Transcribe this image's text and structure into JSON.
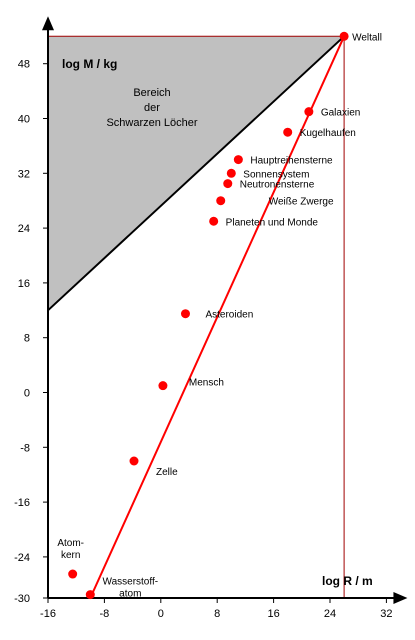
{
  "chart_data": {
    "type": "scatter",
    "title": "",
    "xlabel": "log R / m",
    "ylabel": "log M / kg",
    "xlim": [
      -16,
      33
    ],
    "ylim": [
      -30,
      52
    ],
    "x_ticks": [
      -16,
      -8,
      0,
      8,
      16,
      24,
      32
    ],
    "y_ticks": [
      -30,
      -24,
      -16,
      -8,
      0,
      8,
      16,
      24,
      32,
      40,
      48
    ],
    "region": {
      "label_lines": [
        "Bereich",
        "der",
        "Schwarzen Löcher"
      ],
      "boundary": [
        [
          -16,
          12
        ],
        [
          26,
          52
        ]
      ]
    },
    "trend_line": {
      "from": [
        -10,
        -30
      ],
      "to": [
        26,
        52
      ]
    },
    "universe_limit": {
      "x": 26,
      "y": 52
    },
    "points": [
      {
        "label": "Weltall",
        "x": 26,
        "y": 52
      },
      {
        "label": "Galaxien",
        "x": 21,
        "y": 41
      },
      {
        "label": "Kugelhaufen",
        "x": 18,
        "y": 38
      },
      {
        "label": "Hauptreihensterne",
        "x": 11,
        "y": 34
      },
      {
        "label": "Sonnensystem",
        "x": 10,
        "y": 32
      },
      {
        "label": "Neutronensterne",
        "x": 9.5,
        "y": 30.5
      },
      {
        "label": "Weiße Zwerge",
        "x": 8.5,
        "y": 28
      },
      {
        "label": "Planeten und Monde",
        "x": 7.5,
        "y": 25
      },
      {
        "label": "Asteroiden",
        "x": 3.5,
        "y": 11.5
      },
      {
        "label": "Mensch",
        "x": 0.3,
        "y": 1
      },
      {
        "label": "Zelle",
        "x": -3.8,
        "y": -10
      },
      {
        "label": "Atom-\nkern",
        "x": -12.5,
        "y": -26.5
      },
      {
        "label": "Wasserstoff-\natom",
        "x": -10,
        "y": -29.5
      }
    ]
  }
}
